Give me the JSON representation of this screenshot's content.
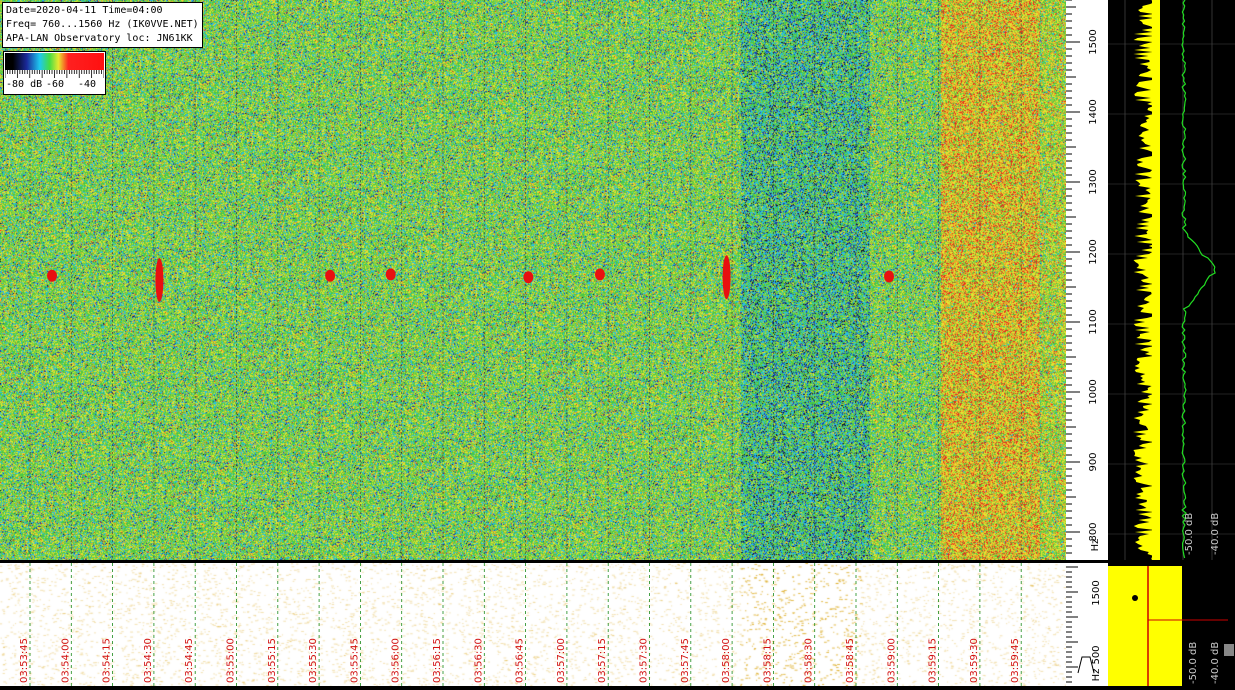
{
  "info": {
    "line1": "Date=2020-04-11 Time=04:00",
    "line2": "Freq= 760...1560 Hz (IK0VVE.NET)",
    "line3": "APA-LAN Observatory loc: JN61KK"
  },
  "colorbar": {
    "labels": [
      "-80 dB",
      "-60",
      "-40"
    ],
    "colors": [
      "#000000",
      "#1a2a9a",
      "#1ec8f0",
      "#44dd44",
      "#e8e830",
      "#ff2020"
    ]
  },
  "chart_data": [
    {
      "type": "heatmap",
      "title": "",
      "x_time_labels": [
        "03:53:45",
        "03:54:00",
        "03:54:15",
        "03:54:30",
        "03:54:45",
        "03:55:00",
        "03:55:15",
        "03:55:30",
        "03:55:45",
        "03:56:00",
        "03:56:15",
        "03:56:30",
        "03:56:45",
        "03:57:00",
        "03:57:15",
        "03:57:30",
        "03:57:45",
        "03:58:00",
        "03:58:15",
        "03:58:30",
        "03:58:45",
        "03:59:00",
        "03:59:15",
        "03:59:30",
        "03:59:45"
      ],
      "y_ticks": [
        800,
        900,
        1000,
        1100,
        1200,
        1300,
        1400,
        1500
      ],
      "y_unit": "Hz",
      "ylim": [
        760,
        1560
      ],
      "echoes": [
        {
          "time": "03:53:53",
          "freq": 1166
        },
        {
          "time": "03:54:32",
          "freq": 1160
        },
        {
          "time": "03:55:34",
          "freq": 1166
        },
        {
          "time": "03:55:56",
          "freq": 1168
        },
        {
          "time": "03:56:46",
          "freq": 1164
        },
        {
          "time": "03:57:12",
          "freq": 1168
        },
        {
          "time": "03:57:58",
          "freq": 1164
        },
        {
          "time": "03:58:57",
          "freq": 1165
        }
      ]
    },
    {
      "type": "line",
      "title": "",
      "x_labels": [
        "-50.0 dB",
        "-40.0 dB"
      ],
      "peak_freq": 1174,
      "series_colors": [
        "#ffff00",
        "#22dd22"
      ]
    },
    {
      "type": "heatmap",
      "title": "",
      "y_ticks": [
        500,
        1500
      ],
      "y_unit": "Hz",
      "x_labels": [
        "-50.0 dB",
        "-40.0 dB"
      ]
    }
  ]
}
